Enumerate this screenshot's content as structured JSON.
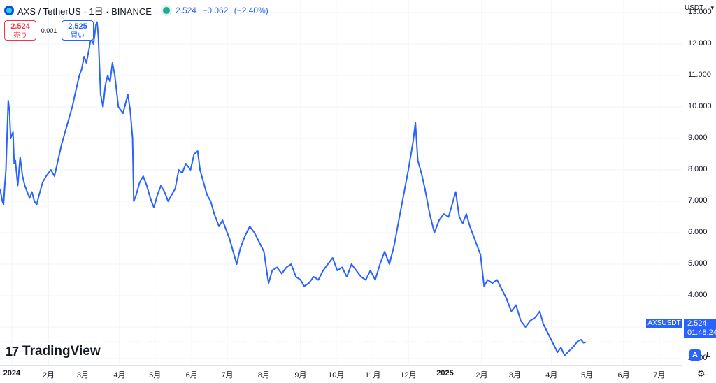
{
  "header": {
    "symbol_title": "AXS / TetherUS · 1日 · BINANCE",
    "last": "2.524",
    "change": "−0.062",
    "change_pct": "(−2.40%)"
  },
  "trade": {
    "sell_price": "2.524",
    "sell_label": "売り",
    "spread": "0.001",
    "buy_price": "2.525",
    "buy_label": "買い"
  },
  "price_axis": {
    "unit": "USDT",
    "ticks": [
      "13.000",
      "12.000",
      "11.000",
      "10.000",
      "9.000",
      "8.000",
      "7.000",
      "6.000",
      "5.000",
      "4.000",
      "3.000",
      "2.000"
    ]
  },
  "time_axis": {
    "labels": [
      "2024",
      "2月",
      "3月",
      "4月",
      "5月",
      "6月",
      "7月",
      "8月",
      "9月",
      "10月",
      "11月",
      "12月",
      "2025",
      "2月",
      "3月",
      "4月",
      "5月",
      "6月",
      "7月"
    ]
  },
  "last_price_tag": {
    "symbol": "AXSUSDT",
    "price": "2.524",
    "countdown": "01:48:24"
  },
  "brand": {
    "name": "TradingView",
    "mark": "17"
  },
  "scale_buttons": {
    "auto": "A",
    "log": "L"
  },
  "colors": {
    "line": "#2962ff",
    "down": "#f23645",
    "up": "#2962ff",
    "grid": "#f0f3fa"
  },
  "chart_data": {
    "type": "line",
    "title": "AXS / TetherUS · 1日 · BINANCE",
    "ylim": [
      1.8,
      13.4
    ],
    "xlim": [
      "2023-12-22",
      "2025-07-20"
    ],
    "grid": true,
    "x_tick_labels": [
      "2024",
      "2月",
      "3月",
      "4月",
      "5月",
      "6月",
      "7月",
      "8月",
      "9月",
      "10月",
      "11月",
      "12月",
      "2025",
      "2月",
      "3月",
      "4月",
      "5月",
      "6月",
      "7月"
    ],
    "series": [
      {
        "points": [
          [
            "2023-12-22",
            7.4
          ],
          [
            "2023-12-24",
            7.0
          ],
          [
            "2023-12-25",
            6.9
          ],
          [
            "2023-12-26",
            7.5
          ],
          [
            "2023-12-27",
            8.0
          ],
          [
            "2023-12-29",
            10.2
          ],
          [
            "2023-12-30",
            9.9
          ],
          [
            "2023-12-31",
            9.0
          ],
          [
            "2024-01-02",
            9.2
          ],
          [
            "2024-01-03",
            8.2
          ],
          [
            "2024-01-04",
            8.3
          ],
          [
            "2024-01-06",
            7.5
          ],
          [
            "2024-01-08",
            8.4
          ],
          [
            "2024-01-10",
            7.8
          ],
          [
            "2024-01-12",
            7.5
          ],
          [
            "2024-01-14",
            7.3
          ],
          [
            "2024-01-16",
            7.1
          ],
          [
            "2024-01-18",
            7.3
          ],
          [
            "2024-01-20",
            7.0
          ],
          [
            "2024-01-22",
            6.9
          ],
          [
            "2024-01-24",
            7.2
          ],
          [
            "2024-01-27",
            7.6
          ],
          [
            "2024-01-30",
            7.8
          ],
          [
            "2024-02-03",
            8.0
          ],
          [
            "2024-02-06",
            7.8
          ],
          [
            "2024-02-09",
            8.3
          ],
          [
            "2024-02-12",
            8.8
          ],
          [
            "2024-02-15",
            9.2
          ],
          [
            "2024-02-18",
            9.6
          ],
          [
            "2024-02-21",
            10.0
          ],
          [
            "2024-02-24",
            10.5
          ],
          [
            "2024-02-27",
            11.0
          ],
          [
            "2024-02-29",
            11.2
          ],
          [
            "2024-03-02",
            11.6
          ],
          [
            "2024-03-04",
            11.4
          ],
          [
            "2024-03-06",
            11.8
          ],
          [
            "2024-03-08",
            12.2
          ],
          [
            "2024-03-10",
            12.0
          ],
          [
            "2024-03-12",
            12.6
          ],
          [
            "2024-03-13",
            12.7
          ],
          [
            "2024-03-14",
            12.3
          ],
          [
            "2024-03-16",
            10.4
          ],
          [
            "2024-03-18",
            10.0
          ],
          [
            "2024-03-20",
            10.7
          ],
          [
            "2024-03-22",
            11.0
          ],
          [
            "2024-03-24",
            10.8
          ],
          [
            "2024-03-26",
            11.4
          ],
          [
            "2024-03-28",
            11.0
          ],
          [
            "2024-03-31",
            10.0
          ],
          [
            "2024-04-04",
            9.8
          ],
          [
            "2024-04-08",
            10.4
          ],
          [
            "2024-04-10",
            9.9
          ],
          [
            "2024-04-12",
            9.0
          ],
          [
            "2024-04-13",
            7.0
          ],
          [
            "2024-04-15",
            7.2
          ],
          [
            "2024-04-18",
            7.6
          ],
          [
            "2024-04-21",
            7.8
          ],
          [
            "2024-04-24",
            7.5
          ],
          [
            "2024-04-27",
            7.1
          ],
          [
            "2024-04-30",
            6.8
          ],
          [
            "2024-05-03",
            7.2
          ],
          [
            "2024-05-06",
            7.5
          ],
          [
            "2024-05-09",
            7.3
          ],
          [
            "2024-05-12",
            7.0
          ],
          [
            "2024-05-15",
            7.2
          ],
          [
            "2024-05-18",
            7.4
          ],
          [
            "2024-05-21",
            8.0
          ],
          [
            "2024-05-24",
            7.9
          ],
          [
            "2024-05-27",
            8.2
          ],
          [
            "2024-05-31",
            8.0
          ],
          [
            "2024-06-03",
            8.5
          ],
          [
            "2024-06-06",
            8.6
          ],
          [
            "2024-06-08",
            8.0
          ],
          [
            "2024-06-11",
            7.6
          ],
          [
            "2024-06-14",
            7.2
          ],
          [
            "2024-06-17",
            7.0
          ],
          [
            "2024-06-20",
            6.6
          ],
          [
            "2024-06-24",
            6.2
          ],
          [
            "2024-06-27",
            6.4
          ],
          [
            "2024-07-01",
            6.0
          ],
          [
            "2024-07-03",
            5.8
          ],
          [
            "2024-07-06",
            5.4
          ],
          [
            "2024-07-09",
            5.0
          ],
          [
            "2024-07-12",
            5.5
          ],
          [
            "2024-07-16",
            5.9
          ],
          [
            "2024-07-20",
            6.2
          ],
          [
            "2024-07-24",
            6.0
          ],
          [
            "2024-07-28",
            5.7
          ],
          [
            "2024-08-01",
            5.4
          ],
          [
            "2024-08-04",
            4.6
          ],
          [
            "2024-08-05",
            4.4
          ],
          [
            "2024-08-08",
            4.8
          ],
          [
            "2024-08-12",
            4.9
          ],
          [
            "2024-08-16",
            4.7
          ],
          [
            "2024-08-20",
            4.9
          ],
          [
            "2024-08-24",
            5.0
          ],
          [
            "2024-08-28",
            4.6
          ],
          [
            "2024-09-01",
            4.5
          ],
          [
            "2024-09-04",
            4.3
          ],
          [
            "2024-09-08",
            4.4
          ],
          [
            "2024-09-12",
            4.6
          ],
          [
            "2024-09-16",
            4.5
          ],
          [
            "2024-09-20",
            4.8
          ],
          [
            "2024-09-24",
            5.0
          ],
          [
            "2024-09-28",
            5.2
          ],
          [
            "2024-10-02",
            4.8
          ],
          [
            "2024-10-06",
            4.9
          ],
          [
            "2024-10-10",
            4.6
          ],
          [
            "2024-10-14",
            5.0
          ],
          [
            "2024-10-18",
            4.8
          ],
          [
            "2024-10-22",
            4.6
          ],
          [
            "2024-10-26",
            4.5
          ],
          [
            "2024-10-30",
            4.8
          ],
          [
            "2024-11-03",
            4.5
          ],
          [
            "2024-11-07",
            5.0
          ],
          [
            "2024-11-11",
            5.4
          ],
          [
            "2024-11-15",
            5.0
          ],
          [
            "2024-11-19",
            5.6
          ],
          [
            "2024-11-23",
            6.4
          ],
          [
            "2024-11-27",
            7.2
          ],
          [
            "2024-12-01",
            8.0
          ],
          [
            "2024-12-05",
            8.9
          ],
          [
            "2024-12-07",
            9.5
          ],
          [
            "2024-12-09",
            8.3
          ],
          [
            "2024-12-12",
            7.9
          ],
          [
            "2024-12-15",
            7.4
          ],
          [
            "2024-12-19",
            6.6
          ],
          [
            "2024-12-23",
            6.0
          ],
          [
            "2024-12-27",
            6.4
          ],
          [
            "2024-12-31",
            6.6
          ],
          [
            "2025-01-04",
            6.5
          ],
          [
            "2025-01-07",
            6.9
          ],
          [
            "2025-01-10",
            7.3
          ],
          [
            "2025-01-13",
            6.5
          ],
          [
            "2025-01-16",
            6.3
          ],
          [
            "2025-01-19",
            6.6
          ],
          [
            "2025-01-22",
            6.2
          ],
          [
            "2025-01-25",
            5.9
          ],
          [
            "2025-01-28",
            5.6
          ],
          [
            "2025-01-31",
            5.3
          ],
          [
            "2025-02-03",
            4.3
          ],
          [
            "2025-02-06",
            4.5
          ],
          [
            "2025-02-10",
            4.4
          ],
          [
            "2025-02-14",
            4.5
          ],
          [
            "2025-02-18",
            4.2
          ],
          [
            "2025-02-22",
            3.9
          ],
          [
            "2025-02-26",
            3.5
          ],
          [
            "2025-03-02",
            3.7
          ],
          [
            "2025-03-06",
            3.2
          ],
          [
            "2025-03-10",
            3.0
          ],
          [
            "2025-03-14",
            3.2
          ],
          [
            "2025-03-18",
            3.3
          ],
          [
            "2025-03-22",
            3.5
          ],
          [
            "2025-03-25",
            3.1
          ],
          [
            "2025-03-29",
            2.8
          ],
          [
            "2025-04-02",
            2.5
          ],
          [
            "2025-04-06",
            2.2
          ],
          [
            "2025-04-09",
            2.35
          ],
          [
            "2025-04-12",
            2.1
          ],
          [
            "2025-04-16",
            2.25
          ],
          [
            "2025-04-20",
            2.4
          ],
          [
            "2025-04-23",
            2.55
          ],
          [
            "2025-04-26",
            2.6
          ],
          [
            "2025-04-28",
            2.5
          ],
          [
            "2025-04-30",
            2.524
          ]
        ]
      }
    ]
  }
}
